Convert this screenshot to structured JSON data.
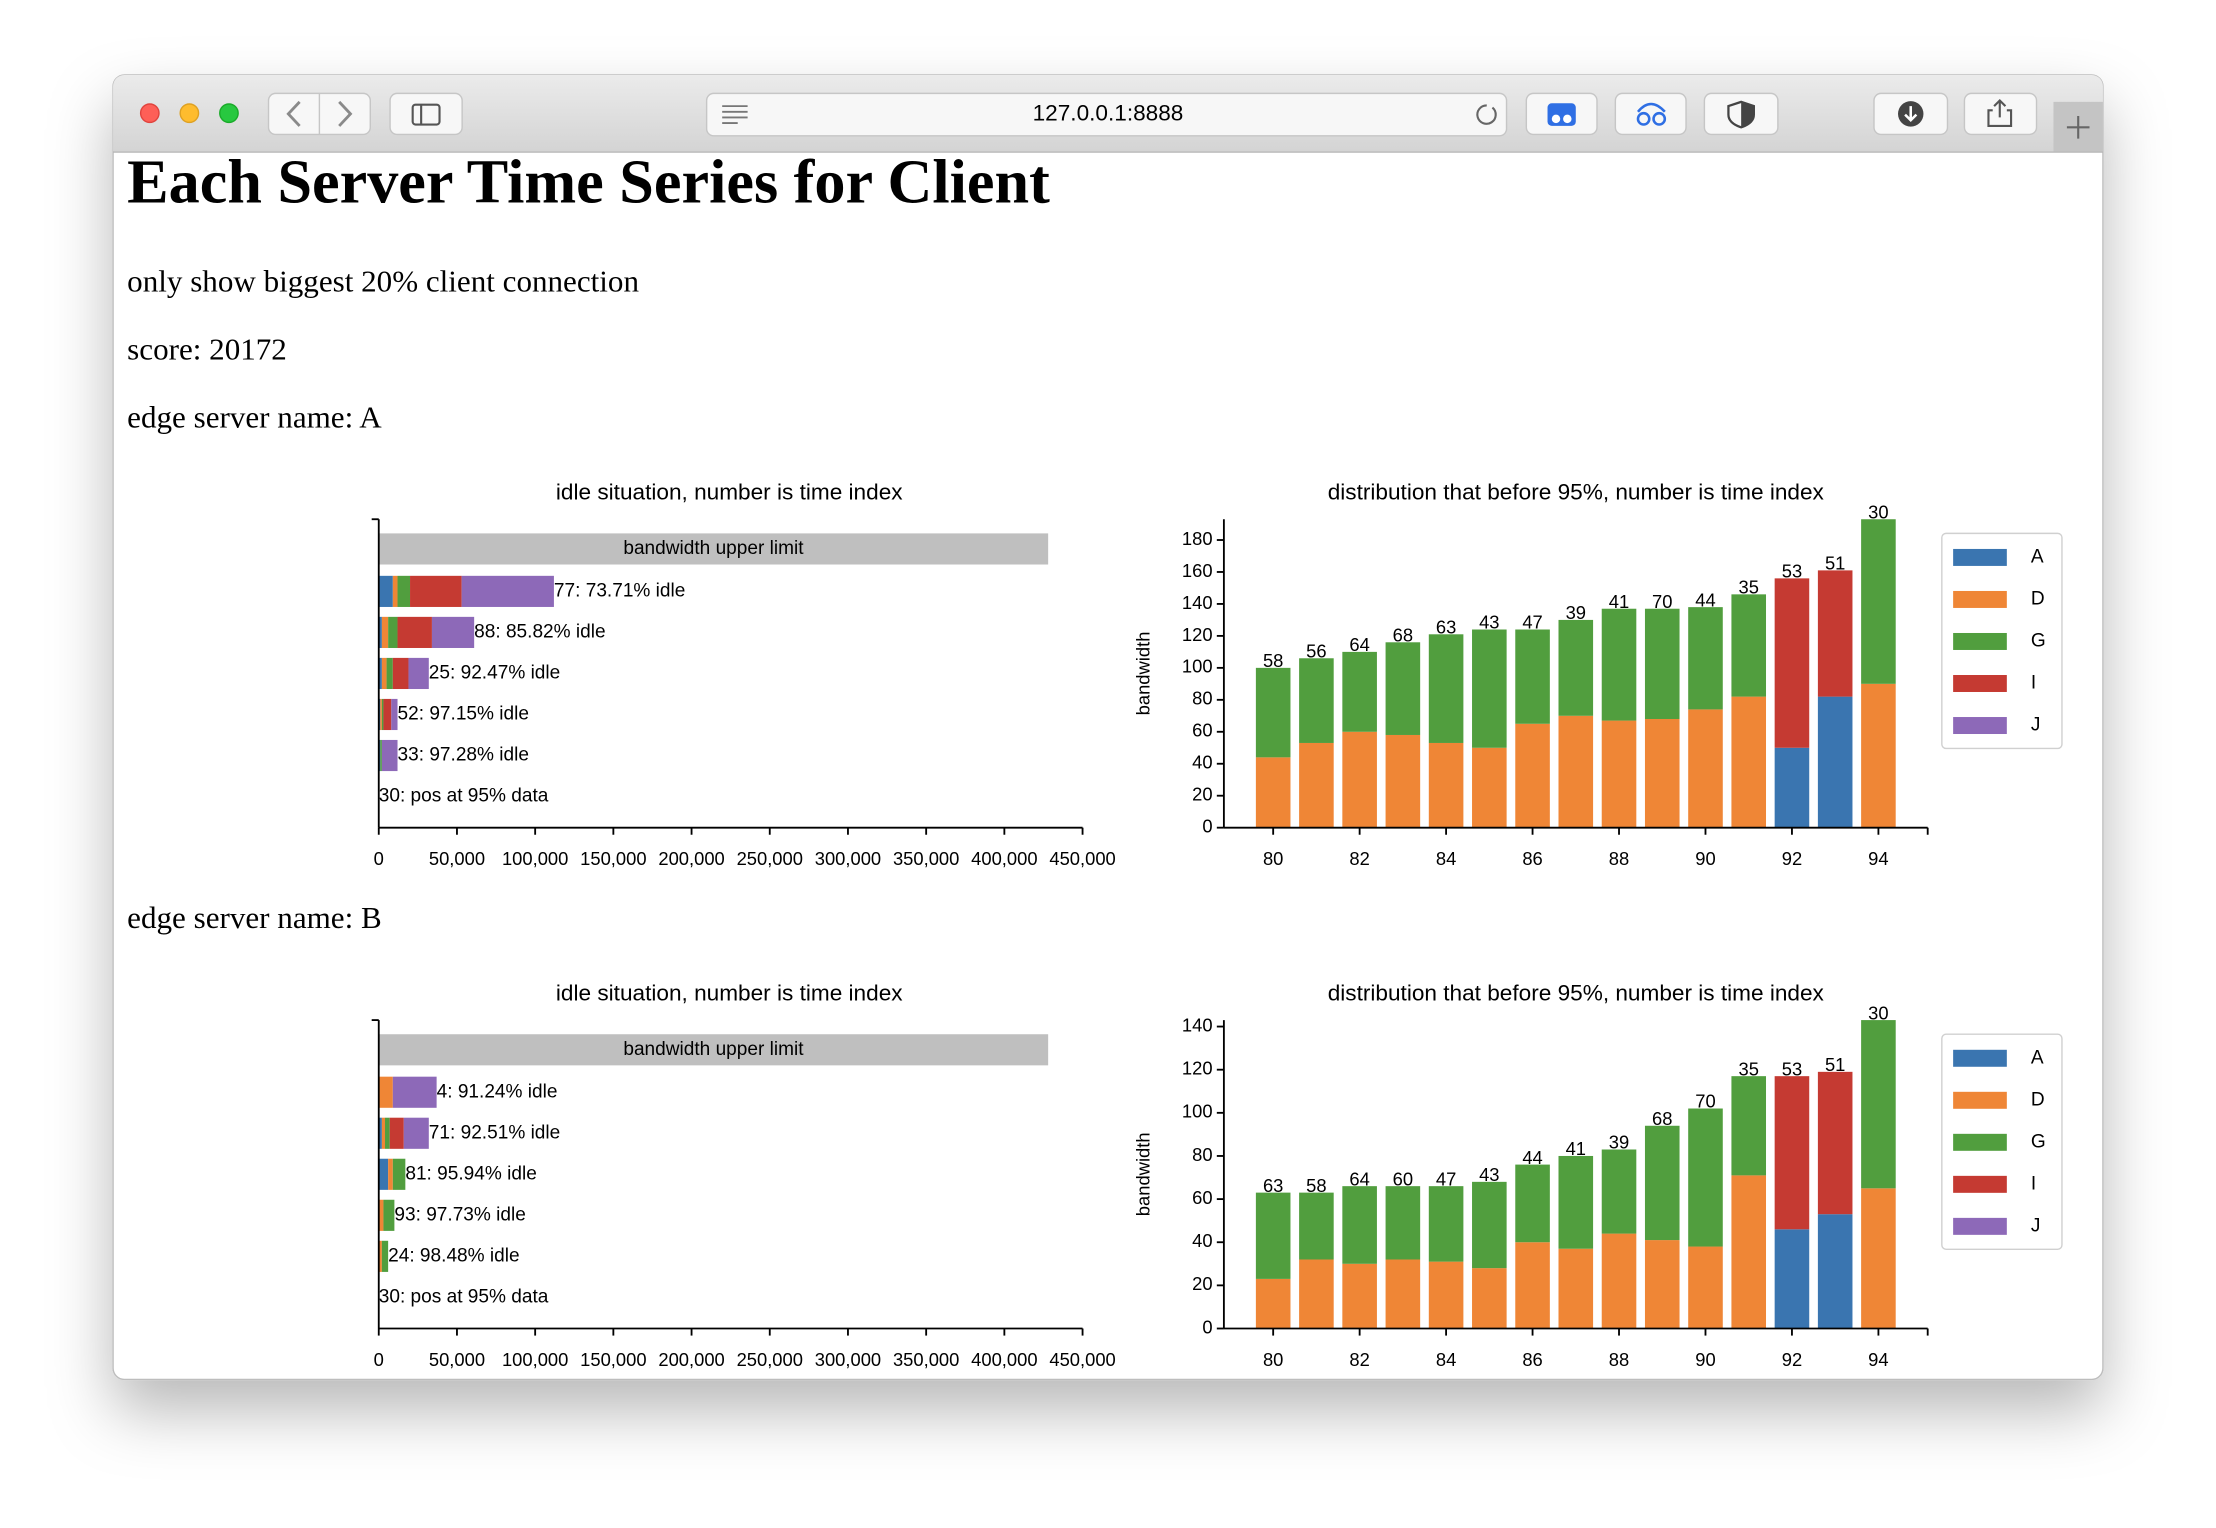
{
  "browser": {
    "url": "127.0.0.1:8888"
  },
  "page": {
    "title": "Each Server Time Series for Client",
    "subtitle": "only show biggest 20% client connection",
    "score": "score: 20172",
    "sections": [
      "edge server name: A",
      "edge server name: B"
    ]
  },
  "chart_data": [
    {
      "type": "bar",
      "orientation": "horizontal",
      "title": "idle situation, number is time index",
      "upper_limit": 428000,
      "upper_limit_label": "bandwidth upper limit",
      "upper_limit_color": "#bfbfbf",
      "categories": [
        "77: 73.71% idle",
        "88: 85.82% idle",
        "25: 92.47% idle",
        "52: 97.15% idle",
        "33: 97.28% idle",
        "30: pos at 95% data"
      ],
      "series": [
        {
          "name": "A",
          "color": "#3a75b0",
          "values": [
            9000,
            2000,
            2000,
            1000,
            1000,
            0
          ]
        },
        {
          "name": "D",
          "color": "#ef8636",
          "values": [
            3000,
            4000,
            3000,
            1000,
            0,
            0
          ]
        },
        {
          "name": "G",
          "color": "#519e3e",
          "values": [
            8000,
            6000,
            4000,
            1000,
            1000,
            0
          ]
        },
        {
          "name": "I",
          "color": "#c53a32",
          "values": [
            33000,
            22000,
            10000,
            5000,
            0,
            0
          ]
        },
        {
          "name": "J",
          "color": "#8d69b8",
          "values": [
            59000,
            27000,
            13000,
            4000,
            10000,
            0
          ]
        }
      ],
      "xlim": [
        0,
        450000
      ],
      "xticks": [
        0,
        {
          "value": 50000,
          "label": "50,000"
        },
        {
          "value": 100000,
          "label": "100,000"
        },
        {
          "value": 150000,
          "label": "150,000"
        },
        {
          "value": 200000,
          "label": "200,000"
        },
        {
          "value": 250000,
          "label": "250,000"
        },
        {
          "value": 300000,
          "label": "300,000"
        },
        {
          "value": 350000,
          "label": "350,000"
        },
        {
          "value": 400000,
          "label": "400,000"
        },
        {
          "value": 450000,
          "label": "450,000"
        }
      ]
    },
    {
      "type": "bar",
      "orientation": "vertical",
      "title": "distribution that before 95%, number is time index",
      "ylabel": "bandwidth",
      "x": [
        80,
        81,
        82,
        83,
        84,
        85,
        86,
        87,
        88,
        89,
        90,
        91,
        92,
        93,
        94
      ],
      "bar_labels": [
        58,
        56,
        64,
        68,
        63,
        43,
        47,
        39,
        41,
        70,
        44,
        35,
        53,
        51,
        30
      ],
      "series": [
        {
          "name": "A",
          "color": "#3a75b0",
          "values": [
            null,
            null,
            null,
            null,
            null,
            null,
            null,
            null,
            null,
            null,
            null,
            null,
            50,
            82,
            null
          ]
        },
        {
          "name": "D",
          "color": "#ef8636",
          "values": [
            44,
            53,
            60,
            58,
            53,
            50,
            65,
            70,
            67,
            68,
            74,
            82,
            null,
            null,
            90
          ]
        },
        {
          "name": "G",
          "color": "#519e3e",
          "values": [
            56,
            53,
            50,
            58,
            68,
            74,
            59,
            60,
            70,
            69,
            64,
            64,
            null,
            null,
            103
          ]
        },
        {
          "name": "I",
          "color": "#c53a32",
          "values": [
            null,
            null,
            null,
            null,
            null,
            null,
            null,
            null,
            null,
            null,
            null,
            null,
            106,
            79,
            null
          ]
        },
        {
          "name": "J",
          "color": "#8d69b8",
          "values": [
            null,
            null,
            null,
            null,
            null,
            null,
            null,
            null,
            null,
            null,
            null,
            null,
            null,
            null,
            null
          ]
        }
      ],
      "xlim": [
        78.86,
        95.14
      ],
      "xticks": [
        80,
        82,
        84,
        86,
        88,
        90,
        92,
        94
      ],
      "ylim": [
        0,
        193
      ],
      "yticks": [
        0,
        20,
        40,
        60,
        80,
        100,
        120,
        140,
        160,
        180
      ],
      "legend": "right"
    },
    {
      "type": "bar",
      "orientation": "horizontal",
      "title": "idle situation, number is time index",
      "upper_limit": 428000,
      "upper_limit_label": "bandwidth upper limit",
      "upper_limit_color": "#bfbfbf",
      "categories": [
        "4: 91.24% idle",
        "71: 92.51% idle",
        "81: 95.94% idle",
        "93: 97.73% idle",
        "24: 98.48% idle",
        "30: pos at 95% data"
      ],
      "series": [
        {
          "name": "A",
          "color": "#3a75b0",
          "values": [
            0,
            2000,
            6000,
            0,
            0,
            0
          ]
        },
        {
          "name": "D",
          "color": "#ef8636",
          "values": [
            9000,
            2000,
            3000,
            3000,
            2000,
            0
          ]
        },
        {
          "name": "G",
          "color": "#519e3e",
          "values": [
            0,
            3000,
            8000,
            7000,
            4000,
            0
          ]
        },
        {
          "name": "I",
          "color": "#c53a32",
          "values": [
            0,
            9000,
            0,
            0,
            0,
            0
          ]
        },
        {
          "name": "J",
          "color": "#8d69b8",
          "values": [
            28000,
            16000,
            0,
            0,
            0,
            0
          ]
        }
      ],
      "xlim": [
        0,
        450000
      ],
      "xticks": [
        0,
        {
          "value": 50000,
          "label": "50,000"
        },
        {
          "value": 100000,
          "label": "100,000"
        },
        {
          "value": 150000,
          "label": "150,000"
        },
        {
          "value": 200000,
          "label": "200,000"
        },
        {
          "value": 250000,
          "label": "250,000"
        },
        {
          "value": 300000,
          "label": "300,000"
        },
        {
          "value": 350000,
          "label": "350,000"
        },
        {
          "value": 400000,
          "label": "400,000"
        },
        {
          "value": 450000,
          "label": "450,000"
        }
      ]
    },
    {
      "type": "bar",
      "orientation": "vertical",
      "title": "distribution that before 95%, number is time index",
      "ylabel": "bandwidth",
      "x": [
        80,
        81,
        82,
        83,
        84,
        85,
        86,
        87,
        88,
        89,
        90,
        91,
        92,
        93,
        94
      ],
      "bar_labels": [
        63,
        58,
        64,
        60,
        47,
        43,
        44,
        41,
        39,
        68,
        70,
        35,
        53,
        51,
        30
      ],
      "series": [
        {
          "name": "A",
          "color": "#3a75b0",
          "values": [
            null,
            null,
            null,
            null,
            null,
            null,
            null,
            null,
            null,
            null,
            null,
            null,
            46,
            53,
            null
          ]
        },
        {
          "name": "D",
          "color": "#ef8636",
          "values": [
            23,
            32,
            30,
            32,
            31,
            28,
            40,
            37,
            44,
            41,
            38,
            71,
            null,
            null,
            65
          ]
        },
        {
          "name": "G",
          "color": "#519e3e",
          "values": [
            40,
            31,
            36,
            34,
            35,
            40,
            36,
            43,
            39,
            53,
            64,
            46,
            null,
            null,
            78
          ]
        },
        {
          "name": "I",
          "color": "#c53a32",
          "values": [
            null,
            null,
            null,
            null,
            null,
            null,
            null,
            null,
            null,
            null,
            null,
            null,
            71,
            66,
            null
          ]
        },
        {
          "name": "J",
          "color": "#8d69b8",
          "values": [
            null,
            null,
            null,
            null,
            null,
            null,
            null,
            null,
            null,
            null,
            null,
            null,
            null,
            null,
            null
          ]
        }
      ],
      "xlim": [
        78.86,
        95.14
      ],
      "xticks": [
        80,
        82,
        84,
        86,
        88,
        90,
        92,
        94
      ],
      "ylim": [
        0,
        143
      ],
      "yticks": [
        0,
        20,
        40,
        60,
        80,
        100,
        120,
        140
      ],
      "legend": "right"
    }
  ]
}
